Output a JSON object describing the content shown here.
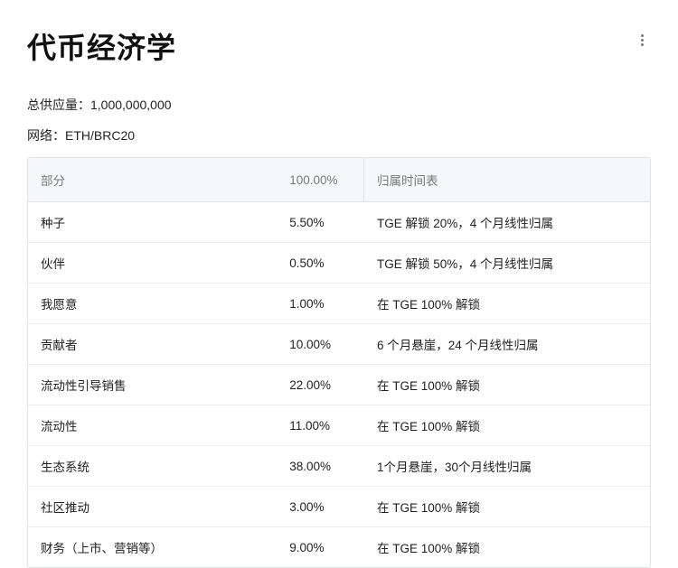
{
  "title": "代币经济学",
  "meta": {
    "supply_label": "总供应量：",
    "supply_value": "1,000,000,000",
    "network_label": "网络：",
    "network_value": "ETH/BRC20"
  },
  "table": {
    "columns": [
      "部分",
      "100.00%",
      "归属时间表"
    ],
    "header_bg": "#f6f7f9",
    "header_color": "#757a80",
    "border_color": "#e1e3e6",
    "row_border_color": "#ececec",
    "text_color": "#222222",
    "font_size": 13.5,
    "rows": [
      [
        "种子",
        "5.50%",
        "TGE 解锁 20%，4 个月线性归属"
      ],
      [
        "伙伴",
        "0.50%",
        "TGE 解锁 50%，4 个月线性归属"
      ],
      [
        "我愿意",
        "1.00%",
        "在 TGE 100% 解锁"
      ],
      [
        "贡献者",
        "10.00%",
        "6 个月悬崖，24 个月线性归属"
      ],
      [
        "流动性引导销售",
        "22.00%",
        "在 TGE 100% 解锁"
      ],
      [
        "流动性",
        "11.00%",
        "在 TGE 100% 解锁"
      ],
      [
        "生态系统",
        "38.00%",
        "1个月悬崖，30个月线性归属"
      ],
      [
        "社区推动",
        "3.00%",
        "在 TGE 100% 解锁"
      ],
      [
        "财务（上市、营销等）",
        "9.00%",
        "在 TGE 100% 解锁"
      ]
    ]
  },
  "colors": {
    "background": "#ffffff",
    "title_color": "#111111"
  }
}
